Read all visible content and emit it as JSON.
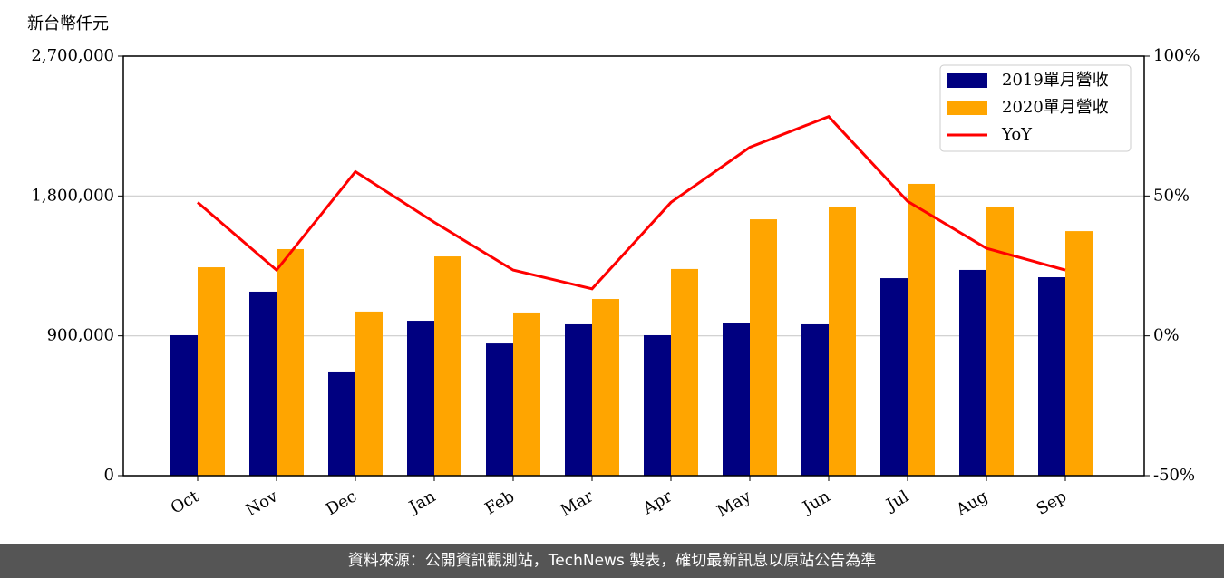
{
  "chart_data": {
    "type": "bar",
    "y_label": "新台幣仟元",
    "categories": [
      "Oct",
      "Nov",
      "Dec",
      "Jan",
      "Feb",
      "Mar",
      "Apr",
      "May",
      "Jun",
      "Jul",
      "Aug",
      "Sep"
    ],
    "series": [
      {
        "name": "2019單月營收",
        "color": "#000080",
        "values": [
          904000,
          1184000,
          665000,
          997000,
          851000,
          974000,
          904000,
          985000,
          974000,
          1271000,
          1324000,
          1277000
        ]
      },
      {
        "name": "2020單月營收",
        "color": "#ffa500",
        "values": [
          1341000,
          1458000,
          1056000,
          1411000,
          1050000,
          1137000,
          1330000,
          1650000,
          1732000,
          1878000,
          1732000,
          1574000
        ]
      },
      {
        "name": "YoY",
        "type": "line",
        "axis": "y2",
        "color": "#ff0000",
        "values": [
          47.7,
          23.5,
          58.7,
          40.6,
          23.5,
          16.8,
          47.7,
          67.4,
          78.4,
          48.1,
          31.3,
          23.5
        ]
      }
    ],
    "ylim": [
      0,
      2700000
    ],
    "yticks": [
      0,
      {
        "value": 900000,
        "label": "900,000"
      },
      {
        "value": 1800000,
        "label": "1,800,000"
      },
      {
        "value": 2700000,
        "label": "2,700,000"
      }
    ],
    "y2lim": [
      -50,
      100
    ],
    "y2ticks": [
      {
        "value": -50,
        "label": "-50%"
      },
      {
        "value": 0,
        "label": "0%"
      },
      {
        "value": 50,
        "label": "50%"
      },
      {
        "value": 100,
        "label": "100%"
      }
    ],
    "grid": true,
    "legend": "upper right"
  },
  "footer": "資料來源：公開資訊觀測站，TechNews 製表，確切最新訊息以原站公告為準"
}
